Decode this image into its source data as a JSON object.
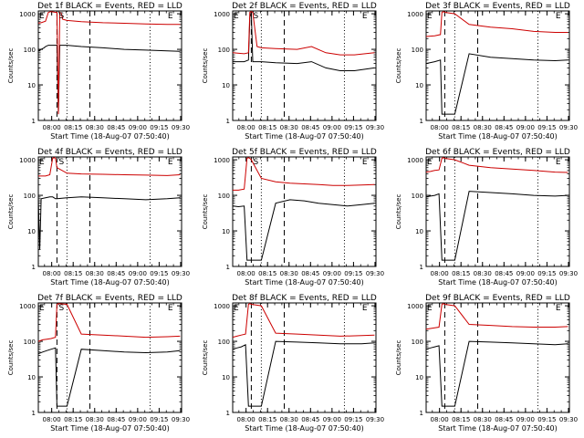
{
  "chart_data": [
    {
      "type": "line",
      "title": "Det 1f BLACK = Events, RED = LLD",
      "xlabel": "Start Time (18-Aug-07 07:50:40)",
      "ylabel": "Counts/sec",
      "x_ticks": [
        "08:00",
        "08:15",
        "08:30",
        "08:45",
        "09:00",
        "09:15",
        "09:30"
      ],
      "y_ticks": [
        "1",
        "10",
        "100",
        "1000"
      ],
      "y_scale": "log",
      "ylim": [
        1,
        1200
      ],
      "xlim_minutes_after_07_50_40": [
        0,
        100
      ],
      "markers": [
        {
          "label": "E",
          "at_min": 0
        },
        {
          "label": "S",
          "at_min": 15
        },
        {
          "label": "E",
          "at_min": 91
        }
      ],
      "dashed_lines_min": [
        13,
        36
      ],
      "dotted_lines_min": [
        20,
        78
      ],
      "series": [
        {
          "name": "Events",
          "color": "#000000",
          "x": [
            0,
            2,
            4,
            5,
            6,
            7,
            9,
            13,
            14,
            15,
            16,
            17,
            20,
            30,
            45,
            60,
            75,
            90,
            99
          ],
          "y": [
            90,
            100,
            110,
            120,
            125,
            130,
            130,
            130,
            1.5,
            130,
            130,
            130,
            130,
            120,
            110,
            100,
            95,
            90,
            88
          ]
        },
        {
          "name": "LLD",
          "color": "#cc0000",
          "x": [
            0,
            2,
            5,
            7,
            9,
            12,
            13,
            14,
            15,
            16,
            17,
            20,
            30,
            45,
            60,
            75,
            90,
            99
          ],
          "y": [
            550,
            560,
            620,
            1100,
            1150,
            1100,
            1100,
            1.5,
            1100,
            1050,
            700,
            650,
            600,
            560,
            540,
            520,
            500,
            500
          ]
        }
      ]
    },
    {
      "type": "line",
      "title": "Det 2f BLACK = Events, RED = LLD",
      "xlabel": "Start Time (18-Aug-07 07:50:40)",
      "ylabel": "Counts/sec",
      "x_ticks": [
        "08:00",
        "08:15",
        "08:30",
        "08:45",
        "09:00",
        "09:15",
        "09:30"
      ],
      "y_ticks": [
        "1",
        "10",
        "100",
        "1000"
      ],
      "y_scale": "log",
      "ylim": [
        1,
        1200
      ],
      "xlim_minutes_after_07_50_40": [
        0,
        100
      ],
      "markers": [
        {
          "label": "E",
          "at_min": 0
        },
        {
          "label": "S",
          "at_min": 15
        },
        {
          "label": "E",
          "at_min": 91
        }
      ],
      "dashed_lines_min": [
        13,
        36
      ],
      "dotted_lines_min": [
        20,
        78
      ],
      "series": [
        {
          "name": "Events",
          "color": "#000000",
          "x": [
            0,
            8,
            11,
            12,
            13,
            14,
            20,
            30,
            45,
            55,
            65,
            75,
            85,
            99
          ],
          "y": [
            45,
            45,
            50,
            800,
            1100,
            45,
            45,
            42,
            40,
            45,
            30,
            25,
            25,
            30
          ]
        },
        {
          "name": "LLD",
          "color": "#cc0000",
          "x": [
            0,
            8,
            11,
            12,
            13,
            14,
            17,
            20,
            30,
            45,
            55,
            65,
            75,
            85,
            99
          ],
          "y": [
            80,
            75,
            80,
            1100,
            1150,
            1100,
            120,
            110,
            105,
            100,
            120,
            80,
            70,
            70,
            80
          ]
        }
      ]
    },
    {
      "type": "line",
      "title": "Det 3f BLACK = Events, RED = LLD",
      "xlabel": "Start Time (18-Aug-07 07:50:40)",
      "ylabel": "Counts/sec",
      "x_ticks": [
        "08:00",
        "08:15",
        "08:30",
        "08:45",
        "09:00",
        "09:15",
        "09:30"
      ],
      "y_ticks": [
        "1",
        "10",
        "100",
        "1000"
      ],
      "y_scale": "log",
      "ylim": [
        1,
        1200
      ],
      "xlim_minutes_after_07_50_40": [
        0,
        100
      ],
      "markers": [
        {
          "label": "E",
          "at_min": 0
        },
        {
          "label": "E",
          "at_min": 91
        }
      ],
      "dashed_lines_min": [
        13,
        36
      ],
      "dotted_lines_min": [
        20,
        78
      ],
      "series": [
        {
          "name": "Events",
          "color": "#000000",
          "x": [
            0,
            6,
            10,
            11,
            12,
            13,
            20,
            30,
            45,
            60,
            75,
            90,
            99
          ],
          "y": [
            40,
            45,
            50,
            1.5,
            1.5,
            1.5,
            1.5,
            75,
            60,
            55,
            50,
            48,
            50
          ]
        },
        {
          "name": "LLD",
          "color": "#cc0000",
          "x": [
            0,
            6,
            10,
            11,
            12,
            13,
            20,
            30,
            45,
            60,
            75,
            90,
            99
          ],
          "y": [
            230,
            240,
            260,
            1100,
            1150,
            1100,
            1000,
            500,
            420,
            380,
            320,
            300,
            300
          ]
        }
      ]
    },
    {
      "type": "line",
      "title": "Det 4f BLACK = Events, RED = LLD",
      "xlabel": "Start Time (18-Aug-07 07:50:40)",
      "ylabel": "Counts/sec",
      "x_ticks": [
        "08:00",
        "08:15",
        "08:30",
        "08:45",
        "09:00",
        "09:15",
        "09:30"
      ],
      "y_ticks": [
        "1",
        "10",
        "100",
        "1000"
      ],
      "y_scale": "log",
      "ylim": [
        1,
        1200
      ],
      "xlim_minutes_after_07_50_40": [
        0,
        100
      ],
      "markers": [
        {
          "label": "E",
          "at_min": 0
        },
        {
          "label": "S",
          "at_min": 15
        },
        {
          "label": "E",
          "at_min": 91
        }
      ],
      "dashed_lines_min": [
        13,
        36
      ],
      "dotted_lines_min": [
        20,
        78
      ],
      "series": [
        {
          "name": "Events",
          "color": "#000000",
          "x": [
            0,
            1,
            2,
            5,
            8,
            10,
            11,
            12,
            13,
            20,
            30,
            45,
            60,
            75,
            90,
            99
          ],
          "y": [
            80,
            3,
            80,
            85,
            90,
            90,
            85,
            80,
            80,
            85,
            90,
            85,
            80,
            75,
            80,
            85
          ]
        },
        {
          "name": "LLD",
          "color": "#cc0000",
          "x": [
            0,
            5,
            8,
            10,
            11,
            12,
            13,
            20,
            30,
            45,
            60,
            75,
            90,
            99
          ],
          "y": [
            350,
            350,
            380,
            1100,
            1150,
            1100,
            600,
            420,
            400,
            390,
            380,
            370,
            360,
            380
          ]
        }
      ]
    },
    {
      "type": "line",
      "title": "Det 5f BLACK = Events, RED = LLD",
      "xlabel": "Start Time (18-Aug-07 07:50:40)",
      "ylabel": "Counts/sec",
      "x_ticks": [
        "08:00",
        "08:15",
        "08:30",
        "08:45",
        "09:00",
        "09:15",
        "09:30"
      ],
      "y_ticks": [
        "1",
        "10",
        "100",
        "1000"
      ],
      "y_scale": "log",
      "ylim": [
        1,
        1200
      ],
      "xlim_minutes_after_07_50_40": [
        0,
        100
      ],
      "markers": [
        {
          "label": "S",
          "at_min": 15
        },
        {
          "label": "E",
          "at_min": 91
        }
      ],
      "dashed_lines_min": [
        13,
        36
      ],
      "dotted_lines_min": [
        20,
        78
      ],
      "series": [
        {
          "name": "Events",
          "color": "#000000",
          "x": [
            0,
            4,
            8,
            10,
            11,
            12,
            13,
            20,
            30,
            40,
            50,
            60,
            70,
            80,
            90,
            99
          ],
          "y": [
            50,
            48,
            50,
            1.5,
            1.5,
            1.5,
            1.5,
            1.5,
            60,
            75,
            70,
            60,
            55,
            50,
            55,
            60
          ]
        },
        {
          "name": "LLD",
          "color": "#cc0000",
          "x": [
            0,
            4,
            8,
            10,
            11,
            12,
            13,
            20,
            30,
            40,
            50,
            60,
            70,
            80,
            90,
            99
          ],
          "y": [
            140,
            140,
            150,
            1100,
            1150,
            1100,
            1000,
            300,
            240,
            220,
            210,
            200,
            190,
            190,
            195,
            200
          ]
        }
      ]
    },
    {
      "type": "line",
      "title": "Det 6f BLACK = Events, RED = LLD",
      "xlabel": "Start Time (18-Aug-07 07:50:40)",
      "ylabel": "Counts/sec",
      "x_ticks": [
        "08:00",
        "08:15",
        "08:30",
        "08:45",
        "09:00",
        "09:15",
        "09:30"
      ],
      "y_ticks": [
        "1",
        "10",
        "100",
        "1000"
      ],
      "y_scale": "log",
      "ylim": [
        1,
        1200
      ],
      "xlim_minutes_after_07_50_40": [
        0,
        100
      ],
      "markers": [
        {
          "label": "E",
          "at_min": 0
        },
        {
          "label": "E",
          "at_min": 91
        }
      ],
      "dashed_lines_min": [
        13,
        36
      ],
      "dotted_lines_min": [
        20,
        78
      ],
      "series": [
        {
          "name": "Events",
          "color": "#000000",
          "x": [
            0,
            3,
            6,
            9,
            11,
            12,
            13,
            20,
            30,
            45,
            60,
            75,
            90,
            99
          ],
          "y": [
            90,
            95,
            100,
            110,
            1.5,
            1.5,
            1.5,
            1.5,
            130,
            120,
            110,
            100,
            95,
            100
          ]
        },
        {
          "name": "LLD",
          "color": "#cc0000",
          "x": [
            0,
            3,
            6,
            9,
            11,
            12,
            13,
            20,
            30,
            45,
            60,
            75,
            90,
            99
          ],
          "y": [
            450,
            470,
            500,
            520,
            1100,
            1150,
            1100,
            1000,
            700,
            600,
            550,
            500,
            450,
            440
          ]
        }
      ]
    },
    {
      "type": "line",
      "title": "Det 7f BLACK = Events, RED = LLD",
      "xlabel": "Start Time (18-Aug-07 07:50:40)",
      "ylabel": "Counts/sec",
      "x_ticks": [
        "08:00",
        "08:15",
        "08:30",
        "08:45",
        "09:00",
        "09:15",
        "09:30"
      ],
      "y_ticks": [
        "1",
        "10",
        "100",
        "1000"
      ],
      "y_scale": "log",
      "ylim": [
        1,
        1200
      ],
      "xlim_minutes_after_07_50_40": [
        0,
        100
      ],
      "markers": [
        {
          "label": "E",
          "at_min": 0
        },
        {
          "label": "S",
          "at_min": 15
        },
        {
          "label": "E",
          "at_min": 91
        }
      ],
      "dashed_lines_min": [
        13,
        36
      ],
      "dotted_lines_min": [
        20,
        78
      ],
      "series": [
        {
          "name": "Events",
          "color": "#000000",
          "x": [
            0,
            3,
            6,
            9,
            12,
            13,
            14,
            20,
            30,
            45,
            60,
            75,
            90,
            99
          ],
          "y": [
            45,
            50,
            55,
            60,
            65,
            1.5,
            1.5,
            1.5,
            60,
            55,
            50,
            48,
            50,
            55
          ]
        },
        {
          "name": "LLD",
          "color": "#cc0000",
          "x": [
            0,
            3,
            6,
            9,
            12,
            13,
            14,
            20,
            30,
            45,
            60,
            75,
            90,
            99
          ],
          "y": [
            100,
            110,
            115,
            120,
            130,
            1100,
            1150,
            1100,
            160,
            150,
            140,
            130,
            135,
            140
          ]
        }
      ]
    },
    {
      "type": "line",
      "title": "Det 8f BLACK = Events, RED = LLD",
      "xlabel": "Start Time (18-Aug-07 07:50:40)",
      "ylabel": "Counts/sec",
      "x_ticks": [
        "08:00",
        "08:15",
        "08:30",
        "08:45",
        "09:00",
        "09:15",
        "09:30"
      ],
      "y_ticks": [
        "1",
        "10",
        "100",
        "1000"
      ],
      "y_scale": "log",
      "ylim": [
        1,
        1200
      ],
      "xlim_minutes_after_07_50_40": [
        0,
        100
      ],
      "markers": [
        {
          "label": "E",
          "at_min": 0
        },
        {
          "label": "E",
          "at_min": 91
        }
      ],
      "dashed_lines_min": [
        13,
        36
      ],
      "dotted_lines_min": [
        20,
        78
      ],
      "series": [
        {
          "name": "Events",
          "color": "#000000",
          "x": [
            0,
            3,
            6,
            9,
            11,
            12,
            13,
            20,
            30,
            45,
            60,
            75,
            90,
            99
          ],
          "y": [
            60,
            65,
            70,
            80,
            1.5,
            1.5,
            1.5,
            1.5,
            100,
            95,
            90,
            85,
            85,
            90
          ]
        },
        {
          "name": "LLD",
          "color": "#cc0000",
          "x": [
            0,
            3,
            6,
            9,
            11,
            12,
            13,
            20,
            30,
            45,
            60,
            75,
            90,
            99
          ],
          "y": [
            130,
            140,
            150,
            160,
            1100,
            1150,
            1100,
            1000,
            170,
            160,
            150,
            140,
            145,
            150
          ]
        }
      ]
    },
    {
      "type": "line",
      "title": "Det 9f BLACK = Events, RED = LLD",
      "xlabel": "Start Time (18-Aug-07 07:50:40)",
      "ylabel": "Counts/sec",
      "x_ticks": [
        "08:00",
        "08:15",
        "08:30",
        "08:45",
        "09:00",
        "09:15",
        "09:30"
      ],
      "y_ticks": [
        "1",
        "10",
        "100",
        "1000"
      ],
      "y_scale": "log",
      "ylim": [
        1,
        1200
      ],
      "xlim_minutes_after_07_50_40": [
        0,
        100
      ],
      "markers": [
        {
          "label": "E",
          "at_min": 0
        },
        {
          "label": "E",
          "at_min": 91
        }
      ],
      "dashed_lines_min": [
        13,
        36
      ],
      "dotted_lines_min": [
        20,
        78
      ],
      "series": [
        {
          "name": "Events",
          "color": "#000000",
          "x": [
            0,
            3,
            6,
            9,
            11,
            12,
            13,
            20,
            30,
            45,
            60,
            75,
            90,
            99
          ],
          "y": [
            60,
            65,
            70,
            75,
            1.5,
            1.5,
            1.5,
            1.5,
            100,
            95,
            90,
            85,
            80,
            85
          ]
        },
        {
          "name": "LLD",
          "color": "#cc0000",
          "x": [
            0,
            3,
            6,
            9,
            11,
            12,
            13,
            20,
            30,
            45,
            60,
            75,
            90,
            99
          ],
          "y": [
            220,
            230,
            240,
            250,
            1100,
            1150,
            1100,
            1000,
            300,
            280,
            260,
            250,
            250,
            260
          ]
        }
      ]
    }
  ]
}
